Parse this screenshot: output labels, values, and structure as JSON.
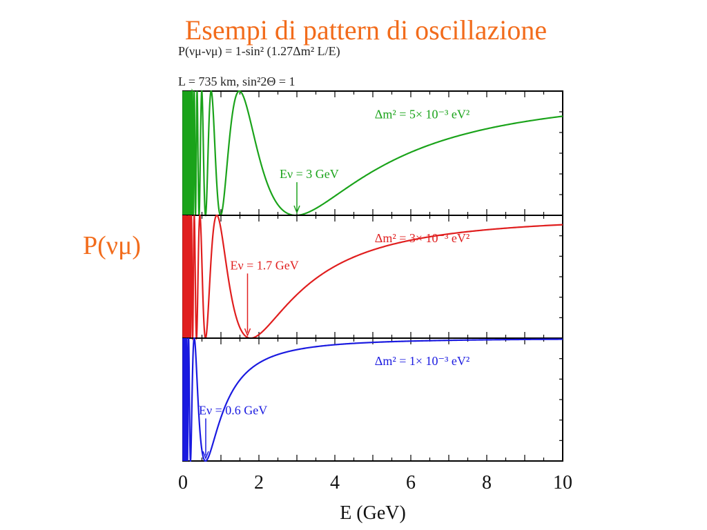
{
  "slide": {
    "title": "Esempi di pattern di oscillazione",
    "y_side_label": "P(νμ)"
  },
  "figure": {
    "formula_text": "P(νμ-νμ) = 1-sin² (1.27Δm² L/E)",
    "params_text": "L = 735 km, sin²2Θ = 1"
  },
  "chart_data": {
    "type": "line",
    "xlabel": "E (GeV)",
    "xlim": [
      0,
      10
    ],
    "x_ticks": [
      0,
      2,
      4,
      6,
      8,
      10
    ],
    "ylim": [
      0,
      1
    ],
    "formula": {
      "amplitude_sin2_2theta": 1,
      "coefficient": 1.27,
      "L_km": 735
    },
    "panels": [
      {
        "color": "#1aa31a",
        "dm2_label": "Δm² = 5× 10⁻³ eV²",
        "energy_label": "Eν = 3 GeV",
        "dm2_eV2": 0.005,
        "first_minimum_GeV": 3
      },
      {
        "color": "#e01e1e",
        "dm2_label": "Δm² = 3× 10⁻³ eV²",
        "energy_label": "Eν = 1.7 GeV",
        "dm2_eV2": 0.003,
        "first_minimum_GeV": 1.7
      },
      {
        "color": "#1a1ae0",
        "dm2_label": "Δm² = 1× 10⁻³ eV²",
        "energy_label": "Eν = 0.6 GeV",
        "dm2_eV2": 0.001,
        "first_minimum_GeV": 0.6
      }
    ]
  }
}
